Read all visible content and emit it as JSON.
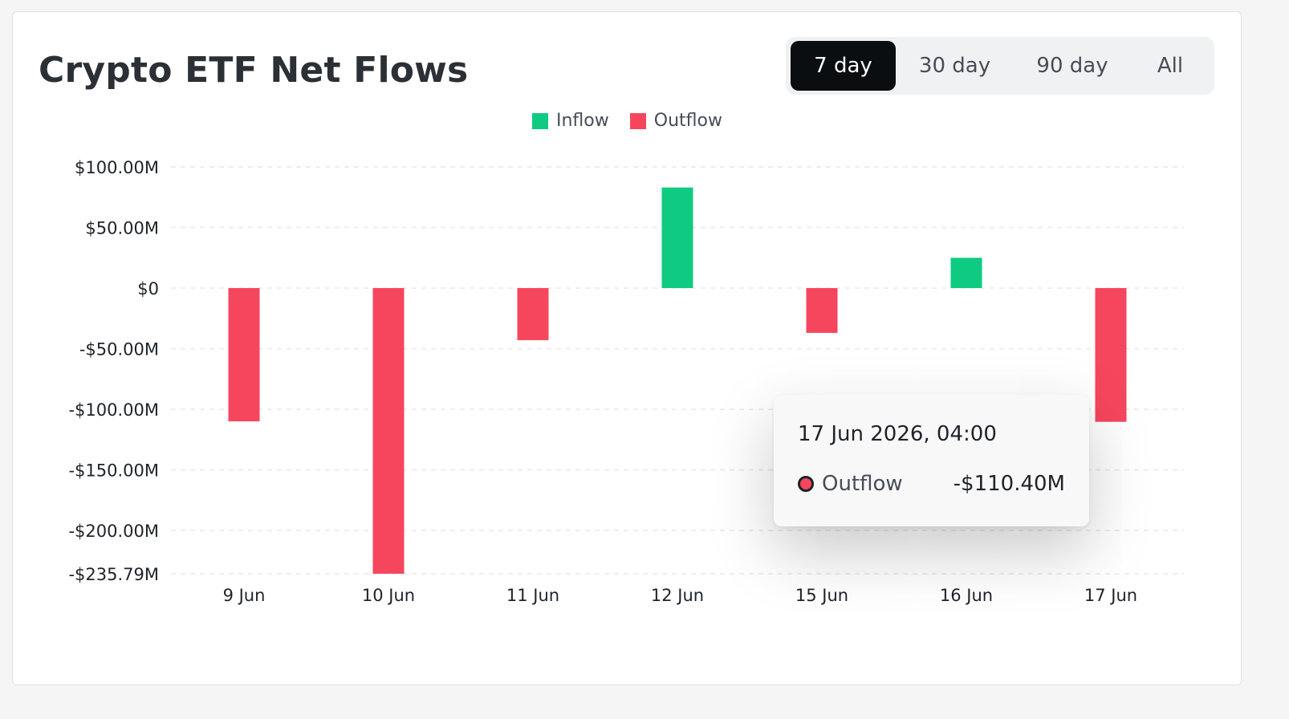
{
  "header": {
    "title": "Crypto ETF Net Flows"
  },
  "range_tabs": [
    {
      "label": "7 day",
      "active": true
    },
    {
      "label": "30 day",
      "active": false
    },
    {
      "label": "90 day",
      "active": false
    },
    {
      "label": "All",
      "active": false
    }
  ],
  "legend": [
    {
      "name": "Inflow",
      "color": "#0ecb81"
    },
    {
      "name": "Outflow",
      "color": "#f6465d"
    }
  ],
  "chart_data": {
    "type": "bar",
    "categories": [
      "9 Jun",
      "10 Jun",
      "11 Jun",
      "12 Jun",
      "15 Jun",
      "16 Jun",
      "17 Jun"
    ],
    "series": [
      {
        "name": "Net Flow",
        "values": [
          -110,
          -235.79,
          -43,
          83,
          -37,
          25,
          -110.4
        ]
      }
    ],
    "ylim": [
      -235.79,
      100
    ],
    "yticks": [
      100,
      50,
      0,
      -50,
      -100,
      -150,
      -200,
      -235.79
    ],
    "ytick_labels": [
      "$100.00M",
      "$50.00M",
      "$0",
      "-$50.00M",
      "-$100.00M",
      "-$150.00M",
      "-$200.00M",
      "-$235.79M"
    ],
    "colors": {
      "positive": "#0ecb81",
      "negative": "#f6465d"
    },
    "grid": true,
    "legend_position": "top-center"
  },
  "tooltip": {
    "title": "17 Jun 2026, 04:00",
    "label": "Outflow",
    "value": "-$110.40M",
    "dot_color": "#f6465d"
  }
}
